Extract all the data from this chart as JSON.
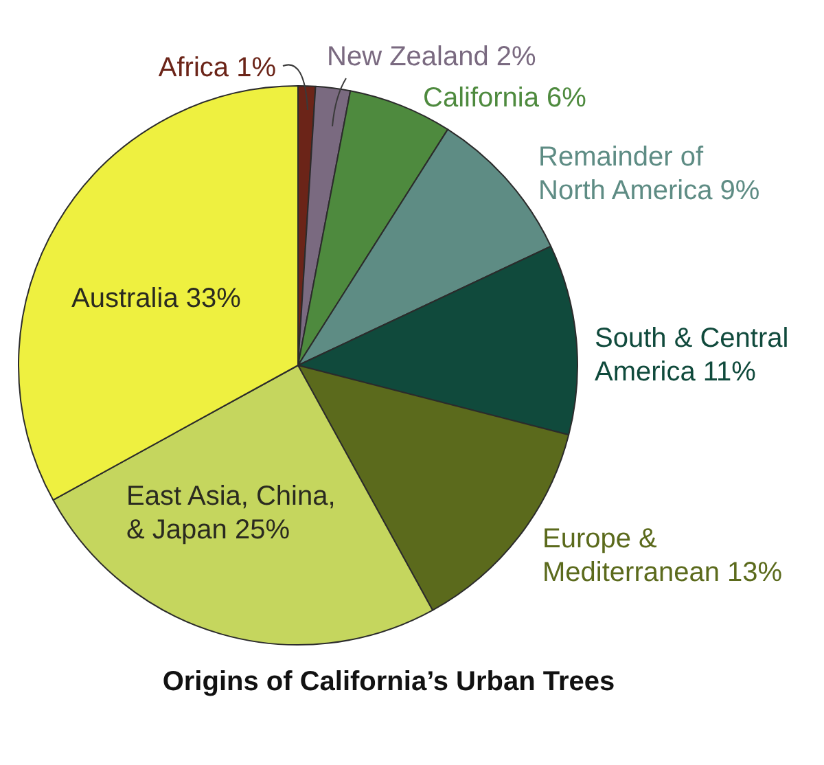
{
  "chart_data": {
    "type": "pie",
    "title": "Origins of California’s Urban Trees",
    "categories": [
      "Africa",
      "New Zealand",
      "California",
      "Remainder of North America",
      "South & Central America",
      "Europe & Mediterranean",
      "East Asia, China, & Japan",
      "Australia"
    ],
    "values": [
      1,
      2,
      6,
      9,
      11,
      13,
      25,
      33
    ],
    "value_labels": [
      "1%",
      "2%",
      "6%",
      "9%",
      "11%",
      "13%",
      "25%",
      "33%"
    ],
    "colors": [
      "#6b2418",
      "#7a6a80",
      "#4e8a3e",
      "#5e8c84",
      "#104a3c",
      "#5b6a1c",
      "#c5d65e",
      "#eef040"
    ]
  }
}
